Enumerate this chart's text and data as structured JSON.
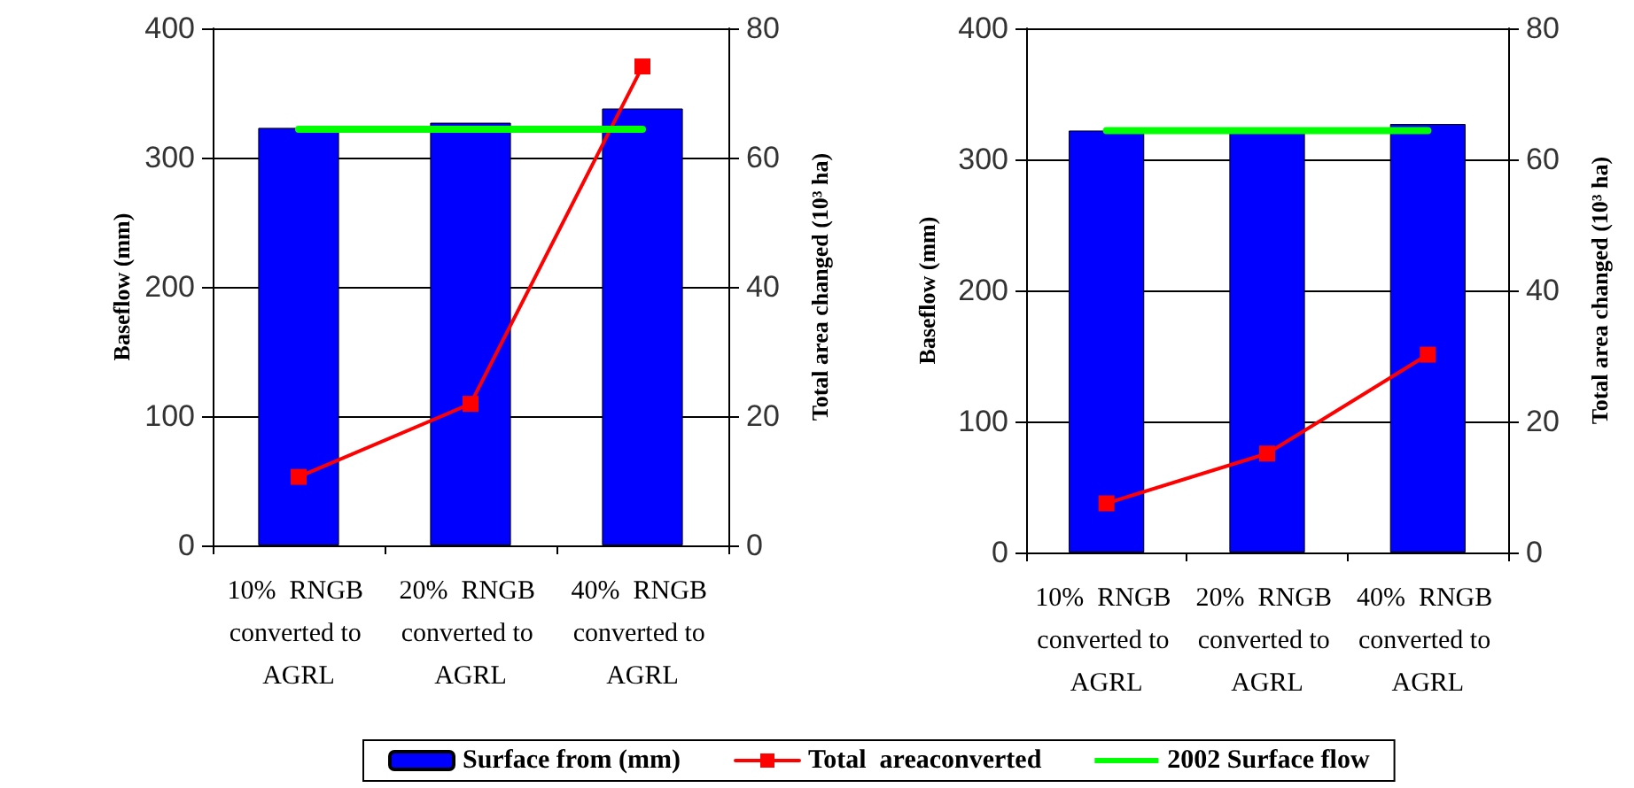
{
  "chart_data": [
    {
      "type": "bar",
      "ylabel": "Baseflow (mm)",
      "y2label": "Total area changed (10³ ha)",
      "categories": [
        "10%  RNGB converted to AGRL",
        "20%  RNGB converted to AGRL",
        "40%  RNGB converted to AGRL"
      ],
      "series": [
        {
          "name": "Surface from (mm)",
          "color": "#0000ff",
          "values": [
            323,
            327,
            338
          ]
        },
        {
          "name": "Total  areaconverted",
          "type": "line",
          "axis": "y2",
          "color": "#ff0000",
          "values": [
            10.6,
            21.9,
            74.1
          ]
        },
        {
          "name": "2002 Surface flow",
          "type": "line",
          "marker": "none",
          "color": "#00ff00",
          "values": [
            322,
            322,
            322
          ]
        }
      ],
      "ylim": [
        0,
        400
      ],
      "yticks": [
        0,
        100,
        200,
        300,
        400
      ],
      "y2lim": [
        0,
        80
      ],
      "y2ticks": [
        0,
        20,
        40,
        60,
        80
      ],
      "grid": "y",
      "legend": "bottom",
      "marker": "square"
    },
    {
      "type": "bar",
      "ylabel": "Baseflow (mm)",
      "y2label": "Total area changed (10³ ha)",
      "categories": [
        "10%  RNGB converted to AGRL",
        "20%  RNGB converted to AGRL",
        "40%  RNGB converted to AGRL"
      ],
      "series": [
        {
          "color": "#0000ff",
          "values": [
            322,
            321,
            327
          ]
        },
        {
          "type": "line",
          "axis": "y2",
          "color": "#ff0000",
          "values": [
            7.5,
            15.1,
            30.2
          ]
        },
        {
          "type": "line",
          "marker": "none",
          "color": "#00ff00",
          "values": [
            322,
            322,
            322
          ]
        }
      ],
      "ylim": [
        0,
        400
      ],
      "yticks": [
        0,
        100,
        200,
        300,
        400
      ],
      "y2lim": [
        0,
        80
      ],
      "y2ticks": [
        0,
        20,
        40,
        60,
        80
      ],
      "grid": "y",
      "marker": "square"
    }
  ]
}
